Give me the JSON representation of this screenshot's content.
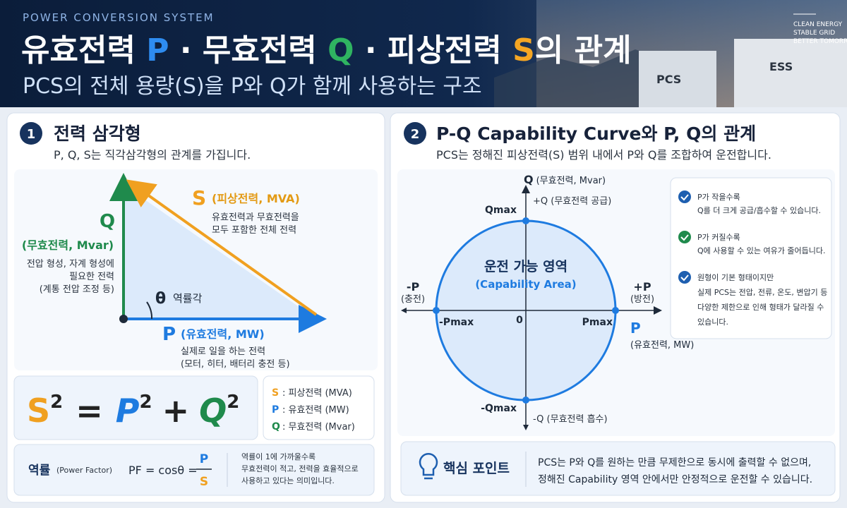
{
  "header": {
    "eyebrow": "POWER CONVERSION SYSTEM",
    "title": {
      "part1": "유효전력 ",
      "p": "P",
      "part2": " · 무효전력 ",
      "q": "Q",
      "part3": " · 피상전력 ",
      "s": "S",
      "part4": "의 관계"
    },
    "subtitle": "PCS의 전체 용량(S)을 P와 Q가 함께 사용하는 구조",
    "tagline": [
      "CLEAN ENERGY",
      "STABLE GRID",
      "BETTER TOMORROW"
    ],
    "image_labels": [
      "PCS",
      "ESS"
    ]
  },
  "triangle_panel": {
    "number": "1",
    "title": "전력 삼각형",
    "description": "P, Q, S는 직각삼각형의 관계를 가집니다.",
    "s_label": {
      "symbol": "S",
      "name": "(피상전력, MVA)",
      "lines": [
        "유효전력과 무효전력을",
        "모두 포함한 전체 전력"
      ]
    },
    "q_label": {
      "symbol": "Q",
      "name": "(무효전력, Mvar)",
      "lines": [
        "전압 형성, 자계 형성에",
        "필요한 전력",
        "(계통 전압 조정 등)"
      ]
    },
    "angle": {
      "symbol": "θ",
      "name": "역률각"
    },
    "p_label": {
      "symbol": "P",
      "name": "(유효전력, MW)",
      "lines": [
        "실제로 일을 하는 전력",
        "(모터, 히터, 배터리 충전 등)"
      ]
    },
    "formula": {
      "s": "S",
      "p": "P",
      "q": "Q",
      "exponent": "2",
      "equals": "=",
      "plus": "+"
    },
    "legend": [
      {
        "symbol": "S",
        "text": ": 피상전력 (MVA)"
      },
      {
        "symbol": "P",
        "text": ": 유효전력 (MW)"
      },
      {
        "symbol": "Q",
        "text": ": 무효전력 (Mvar)"
      }
    ],
    "power_factor": {
      "title": "역률",
      "subtitle": "(Power Factor)",
      "formula": "PF = cosθ =",
      "numerator": "P",
      "denominator": "S",
      "lines": [
        "역률이 1에 가까울수록",
        "무효전력이 적고, 전력을 효율적으로",
        "사용하고 있다는 의미입니다."
      ]
    }
  },
  "capability_panel": {
    "number": "2",
    "title": "P-Q Capability Curve와 P, Q의 관계",
    "description": "PCS는 정해진 피상전력(S) 범위 내에서 P와 Q를 조합하여 운전합니다.",
    "q_axis": {
      "symbol": "Q",
      "name": "(무효전력, Mvar)"
    },
    "q_plus": "+Q (무효전력 공급)",
    "q_max": "Qmax",
    "area": [
      "운전 가능 영역",
      "(Capability Area)"
    ],
    "p_minus": [
      "-P",
      "(충전)"
    ],
    "p_plus": [
      "+P",
      "(방전)"
    ],
    "p_min_label": "-Pmax",
    "origin": "0",
    "p_max": "Pmax",
    "p_axis": {
      "symbol": "P",
      "name": "(유효전력, MW)"
    },
    "q_min_label": "-Qmax",
    "q_minus": "-Q (무효전력 흡수)",
    "notes": [
      [
        "P가 작을수록",
        "Q를 더 크게 공급/흡수할 수 있습니다."
      ],
      [
        "P가 커질수록",
        "Q에 사용할 수 있는 여유가 줄어듭니다."
      ],
      [
        "원형이 기본 형태이지만",
        "실제 PCS는 전압, 전류, 온도, 변압기 등",
        "다양한 제한으로 인해 형태가 달라질 수",
        "있습니다."
      ]
    ],
    "key_point": {
      "title": "핵심 포인트",
      "lines": [
        "PCS는 P와 Q를 원하는 만큼 무제한으로 동시에 출력할 수 없으며,",
        "정해진 Capability 영역 안에서만 안정적으로 운전할 수 있습니다."
      ]
    }
  }
}
